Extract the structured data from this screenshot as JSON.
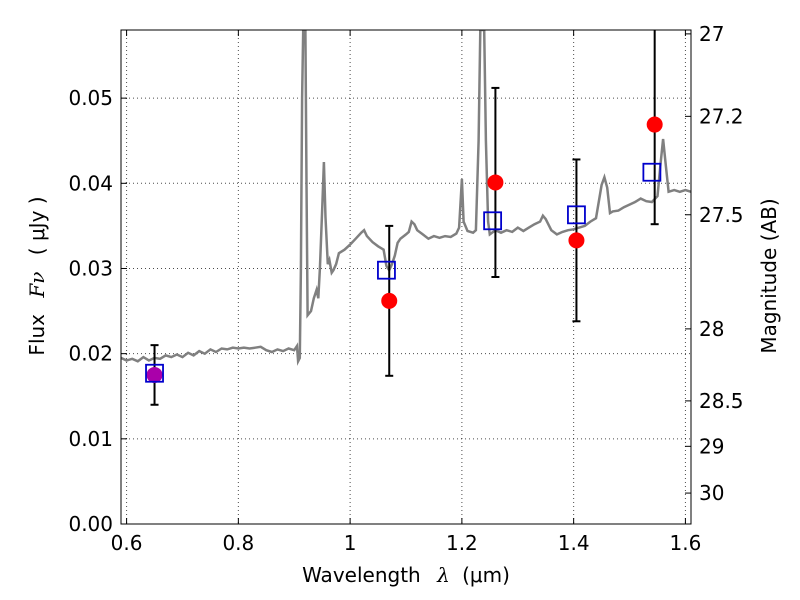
{
  "chart_data": {
    "type": "scatter",
    "xlabel": {
      "prefix": "Wavelength",
      "lambda": "λ",
      "unit": "(μm)"
    },
    "ylabel": {
      "prefix": "Flux",
      "symbol": "Fν",
      "unit": "( μJy )"
    },
    "y2label": "Magnitude (AB)",
    "xlim": [
      0.59,
      1.61
    ],
    "ylim": [
      0.0,
      0.058
    ],
    "x_ticks": [
      0.6,
      0.8,
      1.0,
      1.2,
      1.4,
      1.6
    ],
    "x_tick_labels": [
      "0.6",
      "0.8",
      "1",
      "1.2",
      "1.4",
      "1.6"
    ],
    "y_ticks": [
      0.0,
      0.01,
      0.02,
      0.03,
      0.04,
      0.05
    ],
    "y_tick_labels": [
      "0.00",
      "0.01",
      "0.02",
      "0.03",
      "0.04",
      "0.05"
    ],
    "mag_ticks": [
      27,
      27.2,
      27.5,
      28,
      28.5,
      29,
      30
    ],
    "mag_tick_labels": [
      "27",
      "27.2",
      "27.5",
      "28",
      "28.5",
      "29",
      "30"
    ],
    "grid": true,
    "colors": {
      "spectrum": "#808080",
      "observed": "#ff0000",
      "observed_first": "#aa00aa",
      "model": "#0000cc",
      "errorbar": "#000000"
    },
    "spectrum": [
      [
        0.59,
        0.0195
      ],
      [
        0.6,
        0.0192
      ],
      [
        0.61,
        0.0194
      ],
      [
        0.62,
        0.0191
      ],
      [
        0.63,
        0.0196
      ],
      [
        0.64,
        0.0192
      ],
      [
        0.65,
        0.0195
      ],
      [
        0.66,
        0.0194
      ],
      [
        0.67,
        0.0198
      ],
      [
        0.68,
        0.0196
      ],
      [
        0.69,
        0.0199
      ],
      [
        0.7,
        0.0196
      ],
      [
        0.71,
        0.0201
      ],
      [
        0.72,
        0.0198
      ],
      [
        0.73,
        0.0203
      ],
      [
        0.74,
        0.02
      ],
      [
        0.75,
        0.0205
      ],
      [
        0.76,
        0.0202
      ],
      [
        0.77,
        0.0206
      ],
      [
        0.78,
        0.0205
      ],
      [
        0.79,
        0.0207
      ],
      [
        0.8,
        0.0206
      ],
      [
        0.81,
        0.0207
      ],
      [
        0.82,
        0.0206
      ],
      [
        0.83,
        0.0207
      ],
      [
        0.84,
        0.0208
      ],
      [
        0.85,
        0.0204
      ],
      [
        0.86,
        0.0202
      ],
      [
        0.87,
        0.0205
      ],
      [
        0.88,
        0.0203
      ],
      [
        0.89,
        0.0206
      ],
      [
        0.9,
        0.0204
      ],
      [
        0.905,
        0.0209
      ],
      [
        0.907,
        0.0191
      ],
      [
        0.91,
        0.0195
      ],
      [
        0.912,
        0.03
      ],
      [
        0.914,
        0.05
      ],
      [
        0.916,
        0.058
      ],
      [
        0.918,
        0.058
      ],
      [
        0.92,
        0.058
      ],
      [
        0.922,
        0.04
      ],
      [
        0.924,
        0.0245
      ],
      [
        0.93,
        0.025
      ],
      [
        0.935,
        0.0265
      ],
      [
        0.94,
        0.0275
      ],
      [
        0.943,
        0.0265
      ],
      [
        0.946,
        0.03
      ],
      [
        0.95,
        0.037
      ],
      [
        0.953,
        0.0425
      ],
      [
        0.956,
        0.036
      ],
      [
        0.96,
        0.0305
      ],
      [
        0.963,
        0.031
      ],
      [
        0.967,
        0.0295
      ],
      [
        0.97,
        0.0298
      ],
      [
        0.975,
        0.0305
      ],
      [
        0.98,
        0.0318
      ],
      [
        0.99,
        0.0322
      ],
      [
        1.0,
        0.0328
      ],
      [
        1.01,
        0.0335
      ],
      [
        1.02,
        0.0342
      ],
      [
        1.025,
        0.0345
      ],
      [
        1.03,
        0.0338
      ],
      [
        1.04,
        0.0331
      ],
      [
        1.05,
        0.0326
      ],
      [
        1.06,
        0.0322
      ],
      [
        1.065,
        0.0303
      ],
      [
        1.07,
        0.0298
      ],
      [
        1.075,
        0.0305
      ],
      [
        1.08,
        0.0315
      ],
      [
        1.085,
        0.033
      ],
      [
        1.09,
        0.0335
      ],
      [
        1.1,
        0.034
      ],
      [
        1.105,
        0.0343
      ],
      [
        1.11,
        0.0355
      ],
      [
        1.115,
        0.0352
      ],
      [
        1.12,
        0.0345
      ],
      [
        1.13,
        0.034
      ],
      [
        1.14,
        0.0335
      ],
      [
        1.15,
        0.0338
      ],
      [
        1.16,
        0.0336
      ],
      [
        1.17,
        0.0338
      ],
      [
        1.18,
        0.0337
      ],
      [
        1.19,
        0.0341
      ],
      [
        1.195,
        0.0348
      ],
      [
        1.2,
        0.0405
      ],
      [
        1.203,
        0.0355
      ],
      [
        1.21,
        0.0344
      ],
      [
        1.22,
        0.0342
      ],
      [
        1.225,
        0.0345
      ],
      [
        1.23,
        0.045
      ],
      [
        1.233,
        0.058
      ],
      [
        1.235,
        0.058
      ],
      [
        1.237,
        0.058
      ],
      [
        1.24,
        0.058
      ],
      [
        1.243,
        0.045
      ],
      [
        1.247,
        0.0355
      ],
      [
        1.25,
        0.034
      ],
      [
        1.26,
        0.0345
      ],
      [
        1.27,
        0.0342
      ],
      [
        1.28,
        0.0345
      ],
      [
        1.29,
        0.0343
      ],
      [
        1.3,
        0.0348
      ],
      [
        1.31,
        0.0344
      ],
      [
        1.32,
        0.0348
      ],
      [
        1.33,
        0.0352
      ],
      [
        1.34,
        0.0355
      ],
      [
        1.345,
        0.0362
      ],
      [
        1.35,
        0.0358
      ],
      [
        1.36,
        0.0345
      ],
      [
        1.37,
        0.034
      ],
      [
        1.38,
        0.0343
      ],
      [
        1.39,
        0.0345
      ],
      [
        1.4,
        0.0346
      ],
      [
        1.41,
        0.0348
      ],
      [
        1.42,
        0.035
      ],
      [
        1.43,
        0.0355
      ],
      [
        1.44,
        0.0359
      ],
      [
        1.45,
        0.0398
      ],
      [
        1.455,
        0.0407
      ],
      [
        1.46,
        0.0395
      ],
      [
        1.465,
        0.0365
      ],
      [
        1.47,
        0.0367
      ],
      [
        1.48,
        0.0368
      ],
      [
        1.49,
        0.0372
      ],
      [
        1.5,
        0.0375
      ],
      [
        1.51,
        0.0378
      ],
      [
        1.52,
        0.0382
      ],
      [
        1.53,
        0.0379
      ],
      [
        1.54,
        0.0378
      ],
      [
        1.55,
        0.0385
      ],
      [
        1.555,
        0.042
      ],
      [
        1.56,
        0.0452
      ],
      [
        1.565,
        0.042
      ],
      [
        1.57,
        0.039
      ],
      [
        1.58,
        0.0392
      ],
      [
        1.59,
        0.039
      ],
      [
        1.6,
        0.0392
      ],
      [
        1.61,
        0.039
      ]
    ],
    "observed": [
      {
        "x": 0.65,
        "y": 0.0175,
        "err": 0.0035
      },
      {
        "x": 1.07,
        "y": 0.0262,
        "err": 0.0088
      },
      {
        "x": 1.26,
        "y": 0.0401,
        "err": 0.0111
      },
      {
        "x": 1.405,
        "y": 0.0333,
        "err": 0.0095
      },
      {
        "x": 1.545,
        "y": 0.0469,
        "err": 0.0117
      }
    ],
    "model": [
      {
        "x": 0.65,
        "y": 0.0177
      },
      {
        "x": 1.065,
        "y": 0.0298
      },
      {
        "x": 1.255,
        "y": 0.0356
      },
      {
        "x": 1.405,
        "y": 0.0363
      },
      {
        "x": 1.54,
        "y": 0.0413
      }
    ]
  }
}
